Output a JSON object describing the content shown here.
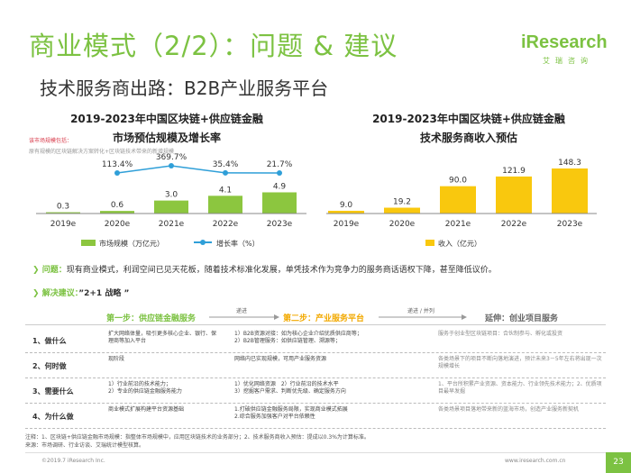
{
  "header": {
    "title": "商业模式（2/2）：问题 & 建议",
    "subtitle": "技术服务商出路：B2B产业服务平台",
    "logo": "iResearch",
    "logo_sub": "艾瑞咨询"
  },
  "left_chart": {
    "title_line1": "2019-2023年中国区块链+供应链金融",
    "title_line2": "市场预估规模及增长率",
    "note1": "该市场规模包括：",
    "note2": "原有规模的区块链解决方案转化+区块链技术带来的新增规模",
    "legend_bar": "市场规模（万亿元）",
    "legend_line": "增长率（%）"
  },
  "right_chart": {
    "title_line1": "2019-2023年中国区块链+供应链金融",
    "title_line2": "技术服务商收入预估",
    "legend_bar": "收入（亿元）"
  },
  "chart_data": [
    {
      "type": "bar",
      "categories": [
        "2019e",
        "2020e",
        "2021e",
        "2022e",
        "2023e"
      ],
      "series": [
        {
          "name": "市场规模（万亿元）",
          "values": [
            0.3,
            0.6,
            3.0,
            4.1,
            4.9
          ]
        },
        {
          "name": "增长率（%）",
          "values": [
            null,
            113.4,
            369.7,
            35.4,
            21.7
          ],
          "labels": [
            "",
            "113.4%",
            "369.7%",
            "35.4%",
            "21.7%"
          ],
          "type": "line"
        }
      ],
      "value_labels": [
        "0.3",
        "0.6",
        "3.0",
        "4.1",
        "4.9"
      ],
      "title": "2019-2023年中国区块链+供应链金融市场预估规模及增长率",
      "legend": "bottom"
    },
    {
      "type": "bar",
      "categories": [
        "2019e",
        "2020e",
        "2021e",
        "2022e",
        "2023e"
      ],
      "series": [
        {
          "name": "收入（亿元）",
          "values": [
            9.0,
            19.2,
            90.0,
            121.9,
            148.3
          ]
        }
      ],
      "value_labels": [
        "9.0",
        "19.2",
        "90.0",
        "121.9",
        "148.3"
      ],
      "title": "2019-2023年中国区块链+供应链金融技术服务商收入预估",
      "legend": "bottom"
    }
  ],
  "problem": {
    "label": "问题：",
    "text": "现有商业模式，利润空间已见天花板，随着技术标准化发展，单凭技术作为竞争力的服务商话语权下降，甚至降低议价。"
  },
  "solution": {
    "label": "解决建议：",
    "text": "”2+1 战略 ”"
  },
  "steps": {
    "step1": "第一步：供应链金融服务",
    "arrow1": "递进",
    "step2": "第二步：产业服务平台",
    "arrow2": "递进 / 并列",
    "step3": "延伸：创业项目服务"
  },
  "table": [
    {
      "label": "1、做什么",
      "c1": "扩大网络体量，吸引更多核心企业、银行、保理商等加入平台",
      "c2": "1）B2B资源对接：如为核心企业介绍优质供应商等；\n2）B2B管理服务：如供应链管理、溯源等；",
      "c3": "服务于创业型区块链项目：合伙制参与、孵化或投资"
    },
    {
      "label": "2、何时做",
      "c1": "现阶段",
      "c2": "网络内已实现规模，可用产业服务资源",
      "c3": "各类场景下的项目不断向落地演进，预计未来3－5年左右将出现一次规模增长"
    },
    {
      "label": "3、需要什么",
      "c1": "1）行业前沿的技术能力；\n2）专业的供应链金融服务能力",
      "c2": "1）优化网络资源　2）行业前沿的技术水平\n3）挖掘客户需求、判断优先级、确定服务方向",
      "c3": "1、平台所积累产业资源、资本能力、行业领先技术能力；2、优质项目最早发掘"
    },
    {
      "label": "4、为什么做",
      "c1": "商业模式扩展构建平台资源基础",
      "c2": "1.打破供应链金融服务局限，实现商业模式拓展\n2.综合服务加强客户对平台依赖性",
      "c3": "各类场景项目落地带来新的蓝海市场，创造产业服务新契机"
    }
  ],
  "footer": {
    "note1": "注释：1、区块链+供应链金融市场规模：指整体市场规模中，应用区块链技术的业务部分；2、技术服务商收入预估：提成以0.3%为计算标准。",
    "note2": "来源：市场调研、行业访谈、艾瑞统计模型核算。",
    "copyright": "©2019.7 iResearch Inc.",
    "website": "www.iresearch.com.cn",
    "page": "23"
  },
  "colors": {
    "accent": "#7cc242",
    "bar_green": "#8cc63f",
    "bar_yellow": "#f9c80e",
    "line_blue": "#2f9fd8"
  }
}
